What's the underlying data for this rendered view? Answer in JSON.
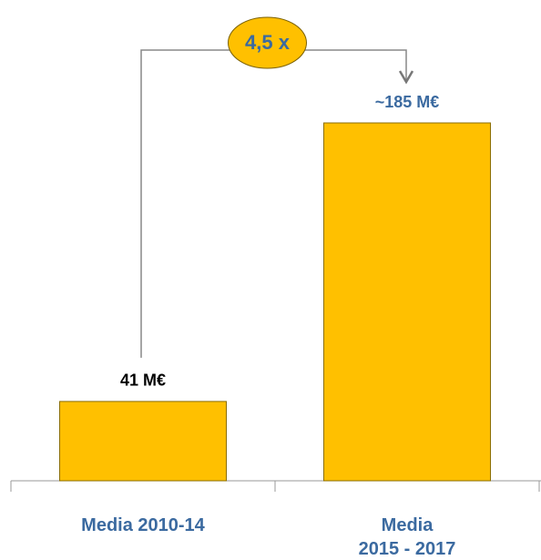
{
  "chart_data": {
    "type": "bar",
    "categories": [
      "Media 2010-14",
      "Media\n2015 - 2017"
    ],
    "values": [
      41,
      185
    ],
    "value_labels": [
      "41 M€",
      "~185 M€"
    ],
    "value_label_colors": [
      "#000000",
      "#3b6aa0"
    ],
    "color": "#FFC000",
    "annotation": "4,5 x"
  }
}
